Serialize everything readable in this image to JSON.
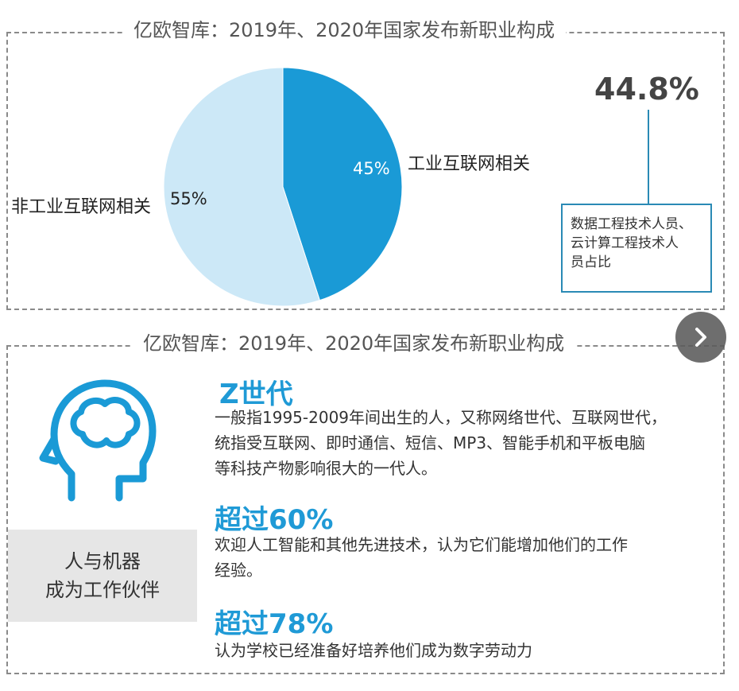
{
  "panel1": {
    "title": "亿欧智库：2019年、2020年国家发布新职业构成"
  },
  "chart_data": {
    "type": "pie",
    "title": "亿欧智库：2019年、2020年国家发布新职业构成",
    "slices": [
      {
        "label": "工业互联网相关",
        "value": 45,
        "value_label": "45%",
        "color": "#1a9ad6"
      },
      {
        "label": "非工业互联网相关",
        "value": 55,
        "value_label": "55%",
        "color": "#cce8f7"
      }
    ]
  },
  "stat": {
    "value": "44.8%",
    "description_lines": [
      "数据工程技术人员、",
      "云计算工程技术人",
      "员占比"
    ]
  },
  "panel2": {
    "title": "亿欧智库：2019年、2020年国家发布新职业构成",
    "box_lines": [
      "人与机器",
      "成为工作伙伴"
    ],
    "items": [
      {
        "heading": "Z世代",
        "lines": [
          "一般指1995-2009年间出生的人，又称网络世代、互联网世代，",
          "统指受互联网、即时通信、短信、MP3、智能手机和平板电脑",
          "等科技产物影响很大的一代人。"
        ]
      },
      {
        "heading": "超过60%",
        "lines": [
          "欢迎人工智能和其他先进技术，认为它们能增加他们的工作",
          "经验。"
        ]
      },
      {
        "heading": "超过78%",
        "lines": [
          "认为学校已经准备好培养他们成为数字劳动力"
        ]
      }
    ]
  },
  "colors": {
    "accent": "#1a9ad6",
    "light": "#cce8f7",
    "border": "#2a8ab5"
  },
  "icons": {
    "next": "chevron-right-icon",
    "head": "head-brain-icon"
  }
}
